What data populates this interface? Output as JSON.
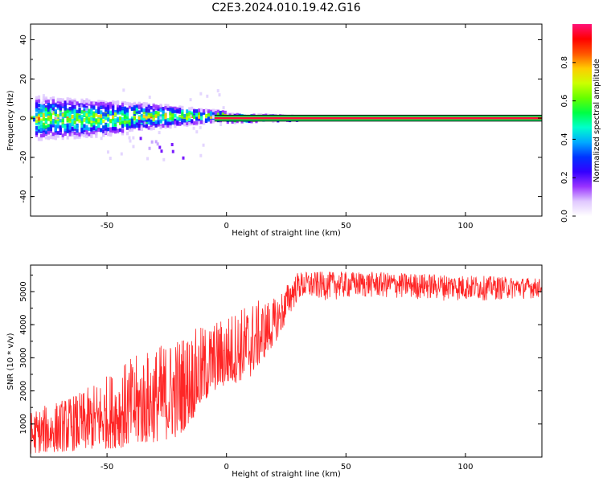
{
  "title": "C2E3.2024.010.19.42.G16",
  "chart_data": [
    {
      "type": "heatmap",
      "xlabel": "Height of straight line (km)",
      "ylabel": "Frequency (Hz)",
      "xlim": [
        -82,
        132
      ],
      "ylim": [
        -50,
        48
      ],
      "xticks": [
        "-50",
        "0",
        "50",
        "100"
      ],
      "yticks": [
        "-40",
        "-20",
        "0",
        "20",
        "40"
      ],
      "colorbar": {
        "label": "Normalized spectral amplitude",
        "range": [
          0,
          1
        ],
        "ticks": [
          "0.0",
          "0.2",
          "0.4",
          "0.6",
          "0.8"
        ],
        "colors": [
          "#ffffff",
          "#e0c8ff",
          "#9933ff",
          "#3300ff",
          "#0033ff",
          "#00aaff",
          "#00ffcc",
          "#00ff44",
          "#66ff00",
          "#ccff00",
          "#ffcc00",
          "#ff5500",
          "#ff0000",
          "#ff1177"
        ]
      },
      "band_center_hz": 0,
      "band_edges_hz": [
        -1.5,
        1.5
      ],
      "description_points": [
        {
          "x": -80,
          "spread_hz": 10
        },
        {
          "x": -50,
          "spread_hz": 8
        },
        {
          "x": -25,
          "spread_hz": 5
        },
        {
          "x": 0,
          "spread_hz": 2
        },
        {
          "x": 30,
          "spread_hz": 1
        },
        {
          "x": 130,
          "spread_hz": 1
        }
      ]
    },
    {
      "type": "line",
      "xlabel": "Height of straight line (km)",
      "ylabel": "SNR (10 * v/v)",
      "xlim": [
        -82,
        132
      ],
      "ylim": [
        0,
        5800
      ],
      "xticks": [
        "-50",
        "0",
        "50",
        "100"
      ],
      "yticks": [
        "1000",
        "2000",
        "3000",
        "4000",
        "5000"
      ],
      "series": [
        {
          "color": "#ff0000",
          "envelope": [
            {
              "x": -82,
              "low": 100,
              "high": 1400
            },
            {
              "x": -60,
              "low": 200,
              "high": 2000
            },
            {
              "x": -40,
              "low": 300,
              "high": 3000
            },
            {
              "x": -20,
              "low": 600,
              "high": 3700
            },
            {
              "x": -5,
              "low": 2000,
              "high": 4100
            },
            {
              "x": 10,
              "low": 2400,
              "high": 4700
            },
            {
              "x": 20,
              "low": 3400,
              "high": 4800
            },
            {
              "x": 30,
              "low": 4700,
              "high": 5600
            },
            {
              "x": 60,
              "low": 4800,
              "high": 5600
            },
            {
              "x": 100,
              "low": 4700,
              "high": 5500
            },
            {
              "x": 132,
              "low": 4800,
              "high": 5400
            }
          ]
        }
      ]
    }
  ]
}
